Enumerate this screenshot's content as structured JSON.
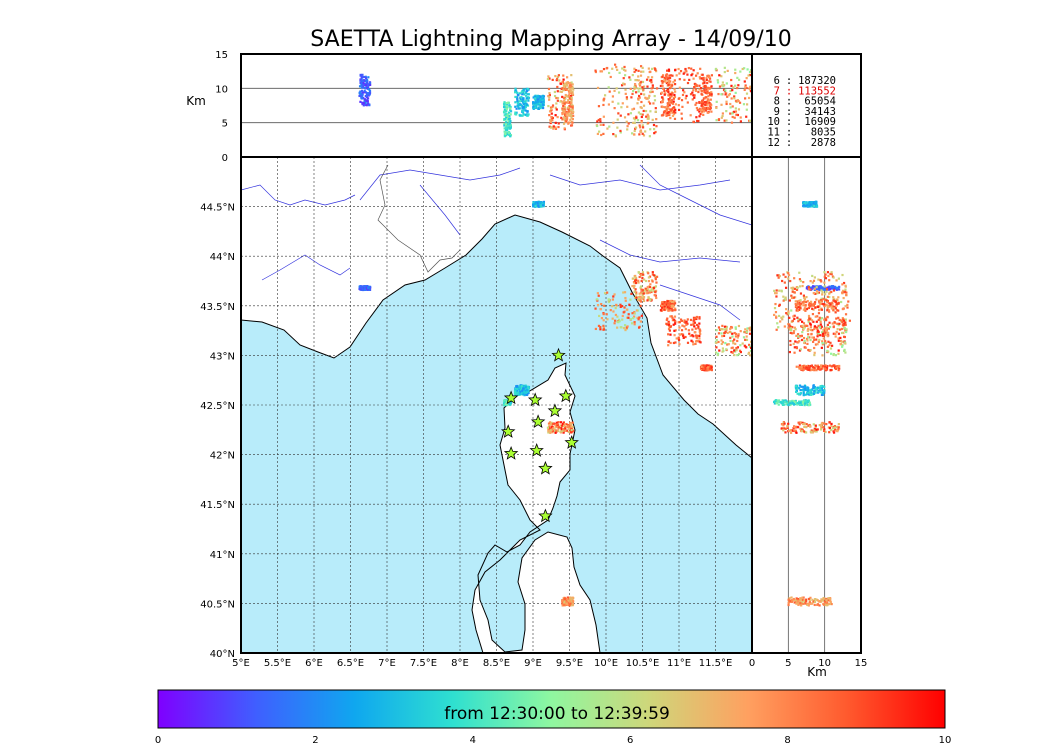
{
  "chart_data": {
    "type": "scatter",
    "title": "SAETTA Lightning Mapping Array - 14/09/10",
    "time_range_label": "from 12:30:00 to 12:39:59",
    "map": {
      "xlim": [
        5.0,
        12.0
      ],
      "ylim": [
        40.0,
        45.0
      ],
      "x_tick_labels": [
        "5°E",
        "5.5°E",
        "6°E",
        "6.5°E",
        "7°E",
        "7.5°E",
        "8°E",
        "8.5°E",
        "9°E",
        "9.5°E",
        "10°E",
        "10.5°E",
        "11°E",
        "11.5°E"
      ],
      "y_tick_labels": [
        "40°N",
        "40.5°N",
        "41°N",
        "41.5°N",
        "42°N",
        "42.5°N",
        "43°N",
        "43.5°N",
        "44°N",
        "44.5°N"
      ],
      "grid": true,
      "sea_color": "#b8ecfa",
      "land_color": "#ffffff",
      "river_color": "#3333dd"
    },
    "altitude_top": {
      "ylim": [
        0,
        15
      ],
      "y_tick_labels": [
        "0",
        "5",
        "10",
        "15"
      ],
      "ylabel": "Km",
      "reference_lines": [
        5,
        10
      ]
    },
    "altitude_side": {
      "xlim": [
        0,
        15
      ],
      "x_tick_labels": [
        "0",
        "5",
        "10",
        "15"
      ],
      "xlabel": "Km",
      "reference_lines": [
        5,
        10
      ]
    },
    "counts": [
      {
        "label": "6",
        "value": "187320",
        "color": "#000000"
      },
      {
        "label": "7",
        "value": "113552",
        "color": "#dd0000"
      },
      {
        "label": "8",
        "value": "65054",
        "color": "#000000"
      },
      {
        "label": "9",
        "value": "34143",
        "color": "#000000"
      },
      {
        "label": "10",
        "value": "16909",
        "color": "#000000"
      },
      {
        "label": "11",
        "value": "8035",
        "color": "#000000"
      },
      {
        "label": "12",
        "value": "2878",
        "color": "#000000"
      }
    ],
    "colorbar": {
      "range": [
        0,
        10
      ],
      "tick_labels": [
        "0",
        "2",
        "4",
        "6",
        "8",
        "10"
      ],
      "colors": [
        "#7f00ff",
        "#3f5fff",
        "#0fa7ef",
        "#2fe0d0",
        "#8ff7a0",
        "#cfd67a",
        "#ffa060",
        "#ff5a2e",
        "#ff0000"
      ]
    },
    "stations": [
      {
        "lon": 9.35,
        "lat": 43.0
      },
      {
        "lon": 8.7,
        "lat": 42.57
      },
      {
        "lon": 9.03,
        "lat": 42.55
      },
      {
        "lon": 9.45,
        "lat": 42.59
      },
      {
        "lon": 9.3,
        "lat": 42.44
      },
      {
        "lon": 9.07,
        "lat": 42.33
      },
      {
        "lon": 8.66,
        "lat": 42.23
      },
      {
        "lon": 9.53,
        "lat": 42.12
      },
      {
        "lon": 8.7,
        "lat": 42.01
      },
      {
        "lon": 9.05,
        "lat": 42.04
      },
      {
        "lon": 9.17,
        "lat": 41.86
      },
      {
        "lon": 9.17,
        "lat": 41.38
      }
    ],
    "clusters": [
      {
        "lon": [
          6.62,
          6.77
        ],
        "lat": [
          43.66,
          43.7
        ],
        "alt": [
          7.5,
          12.0
        ],
        "t": [
          0.5,
          2.0
        ]
      },
      {
        "lon": [
          9.0,
          9.15
        ],
        "lat": [
          44.5,
          44.55
        ],
        "alt": [
          7.0,
          9.0
        ],
        "t": [
          2.0,
          4.0
        ]
      },
      {
        "lon": [
          9.85,
          10.5
        ],
        "lat": [
          43.25,
          43.65
        ],
        "alt": [
          3.0,
          13.5
        ],
        "t": [
          5.5,
          9.5
        ]
      },
      {
        "lon": [
          10.35,
          10.7
        ],
        "lat": [
          43.55,
          43.85
        ],
        "alt": [
          3.0,
          13.0
        ],
        "t": [
          6.0,
          9.5
        ]
      },
      {
        "lon": [
          10.75,
          10.95
        ],
        "lat": [
          43.45,
          43.55
        ],
        "alt": [
          6.0,
          12.0
        ],
        "t": [
          7.0,
          9.5
        ]
      },
      {
        "lon": [
          10.82,
          11.3
        ],
        "lat": [
          43.1,
          43.4
        ],
        "alt": [
          5.0,
          13.0
        ],
        "t": [
          7.5,
          9.8
        ]
      },
      {
        "lon": [
          11.5,
          12.0
        ],
        "lat": [
          43.0,
          43.3
        ],
        "alt": [
          5.0,
          13.0
        ],
        "t": [
          5.0,
          9.8
        ]
      },
      {
        "lon": [
          11.3,
          11.45
        ],
        "lat": [
          42.85,
          42.9
        ],
        "alt": [
          6.0,
          12.0
        ],
        "t": [
          7.5,
          9.5
        ]
      },
      {
        "lon": [
          9.2,
          9.55
        ],
        "lat": [
          42.22,
          42.33
        ],
        "alt": [
          4.0,
          12.0
        ],
        "t": [
          6.0,
          9.9
        ]
      },
      {
        "lon": [
          9.4,
          9.55
        ],
        "lat": [
          40.48,
          40.56
        ],
        "alt": [
          5.0,
          11.0
        ],
        "t": [
          6.5,
          9.0
        ]
      },
      {
        "lon": [
          8.6,
          8.7
        ],
        "lat": [
          42.5,
          42.55
        ],
        "alt": [
          3.0,
          8.0
        ],
        "t": [
          3.0,
          5.0
        ]
      },
      {
        "lon": [
          8.75,
          8.95
        ],
        "lat": [
          42.6,
          42.7
        ],
        "alt": [
          6.0,
          10.0
        ],
        "t": [
          2.0,
          4.0
        ]
      }
    ]
  }
}
